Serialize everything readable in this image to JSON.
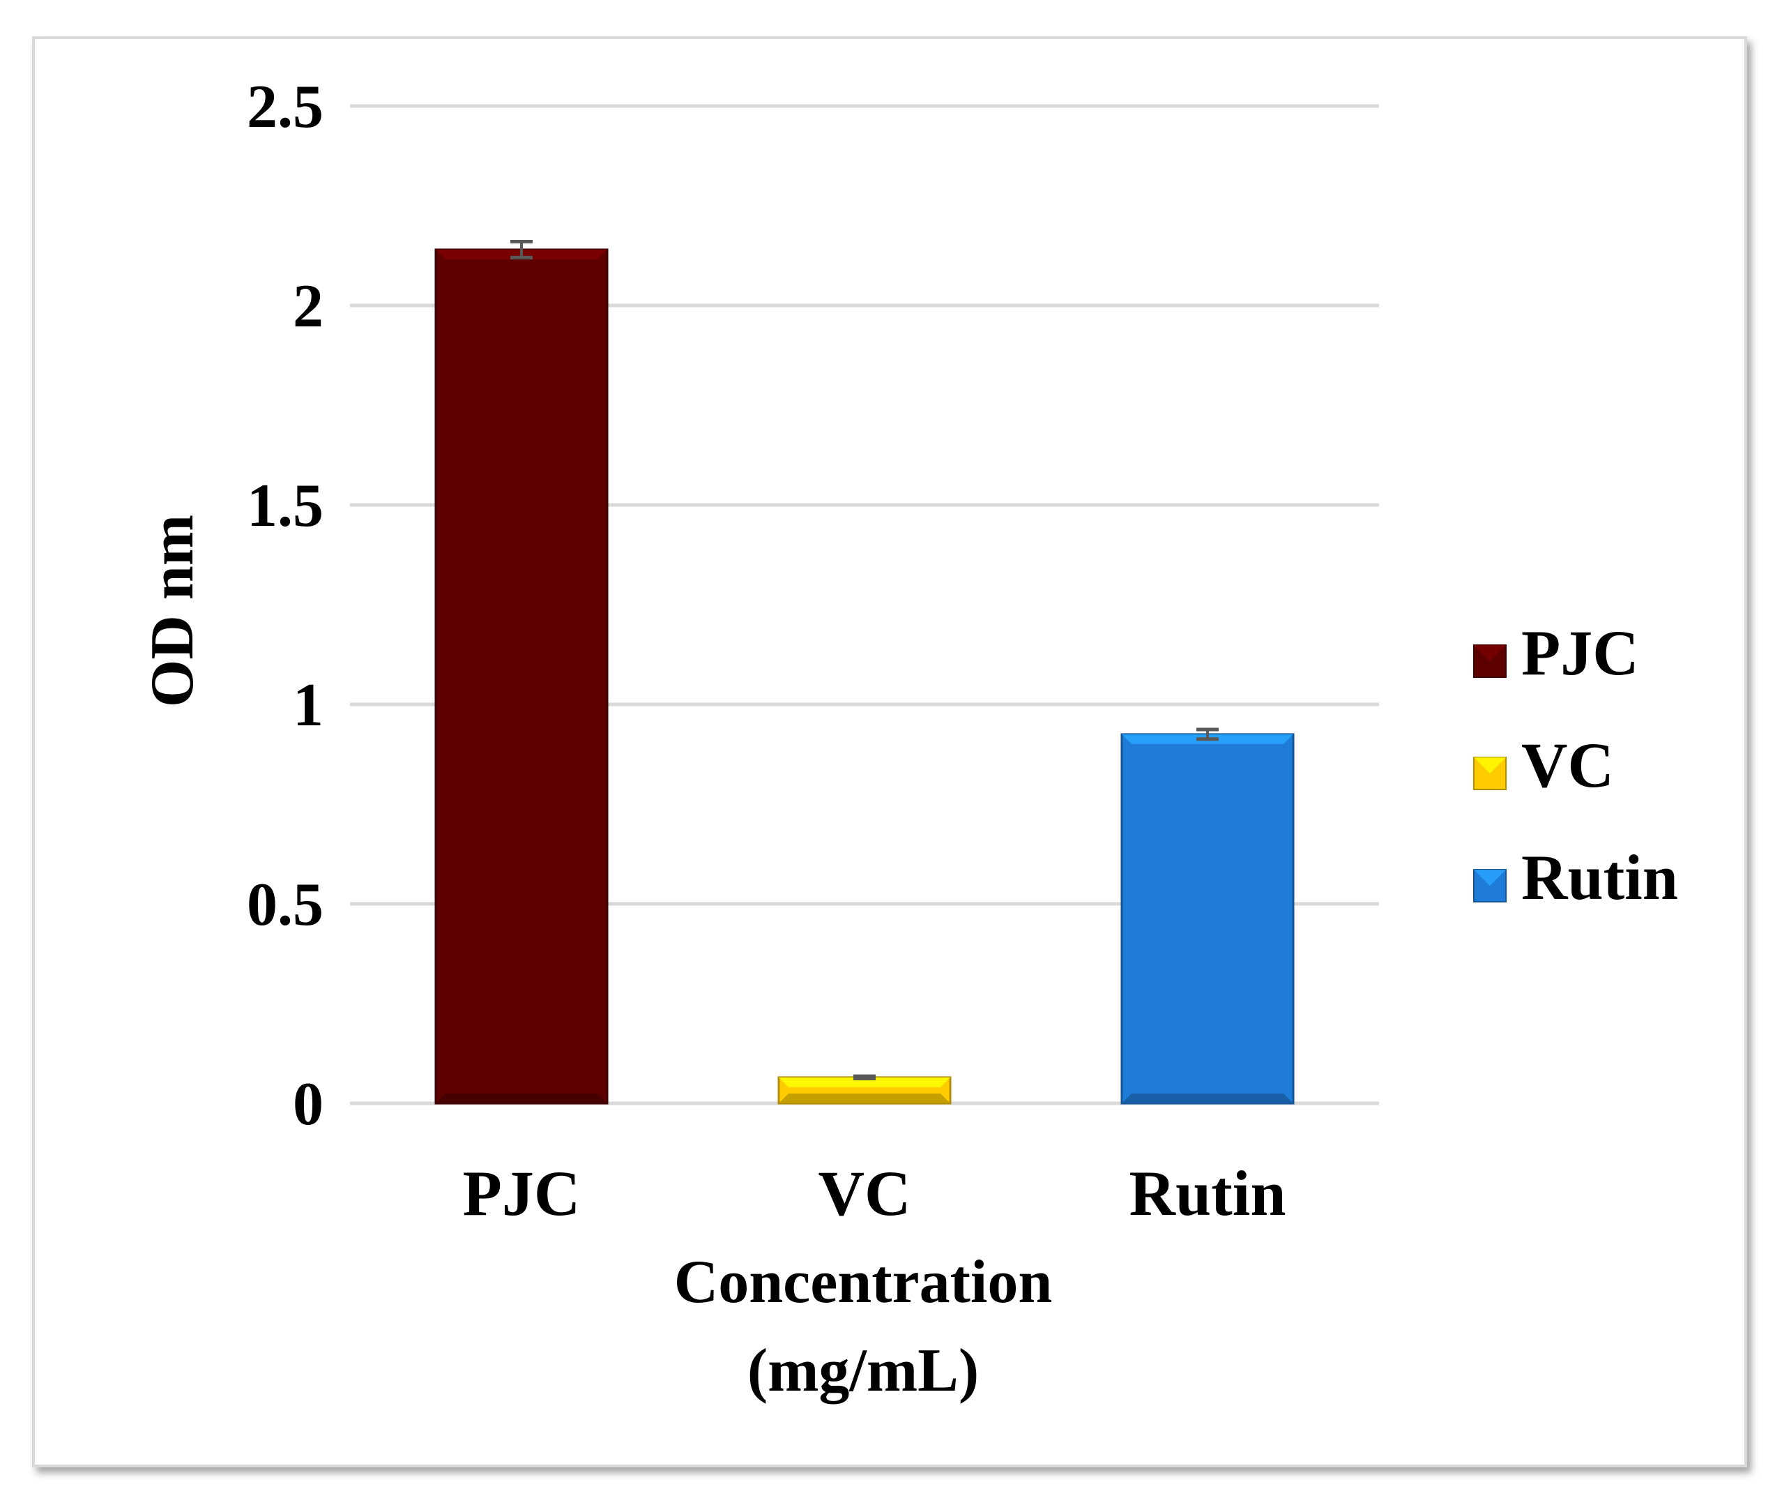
{
  "chart_data": {
    "type": "bar",
    "title": "",
    "categories": [
      "PJC",
      "VC",
      "Rutin"
    ],
    "values": [
      2.14,
      0.065,
      0.925
    ],
    "errors": [
      0.02,
      0.003,
      0.012
    ],
    "colors": [
      "#5c0000",
      "#ffcc00",
      "#1e7bd8"
    ],
    "xlabel_lines": [
      "Concentration",
      "(mg/mL)"
    ],
    "ylabel": "OD nm",
    "ylim": [
      0,
      2.5
    ],
    "yticks": [
      0,
      0.5,
      1,
      1.5,
      2,
      2.5
    ],
    "ytick_labels": [
      "0",
      "0.5",
      "1",
      "1.5",
      "2",
      "2.5"
    ],
    "grid": true,
    "legend": {
      "position": "right",
      "entries": [
        "PJC",
        "VC",
        "Rutin"
      ]
    }
  }
}
